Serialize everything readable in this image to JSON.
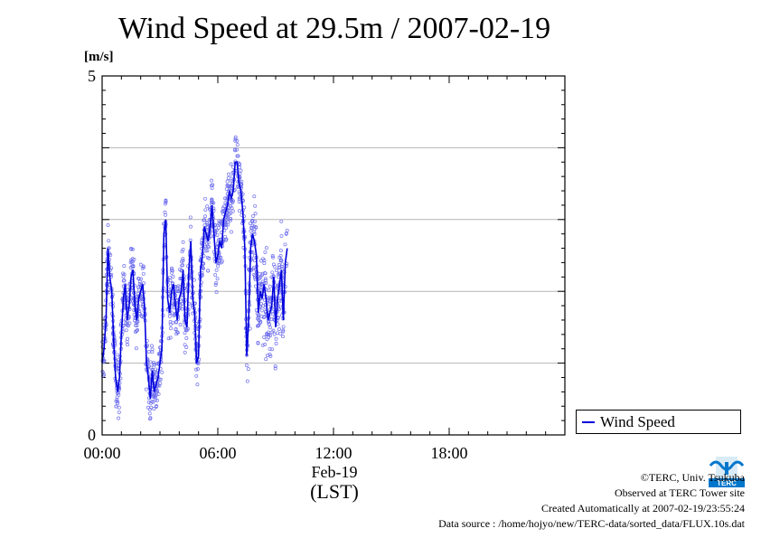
{
  "chart_data": {
    "type": "scatter",
    "title": "Wind Speed at 29.5m / 2007-02-19",
    "ylabel": "[m/s]",
    "xlabel": "(LST)",
    "date_label": "Feb-19",
    "ylim": [
      0,
      5
    ],
    "xlim": [
      0,
      24
    ],
    "y_ticks": [
      "0",
      "5"
    ],
    "x_ticks": [
      {
        "value": 0,
        "label": "00:00"
      },
      {
        "value": 6,
        "label": "06:00"
      },
      {
        "value": 12,
        "label": "12:00"
      },
      {
        "value": 18,
        "label": "18:00"
      }
    ],
    "grid": "horizontal",
    "legend_position": "right",
    "series": [
      {
        "name": "Wind Speed",
        "color": "#0000dd",
        "line_x": [
          0.0,
          0.1,
          0.2,
          0.3,
          0.4,
          0.5,
          0.6,
          0.7,
          0.8,
          0.9,
          1.0,
          1.1,
          1.2,
          1.3,
          1.4,
          1.5,
          1.6,
          1.7,
          1.8,
          1.9,
          2.0,
          2.1,
          2.2,
          2.3,
          2.4,
          2.5,
          2.6,
          2.7,
          2.8,
          2.9,
          3.0,
          3.1,
          3.2,
          3.3,
          3.4,
          3.5,
          3.6,
          3.7,
          3.8,
          3.9,
          4.0,
          4.1,
          4.2,
          4.3,
          4.4,
          4.5,
          4.6,
          4.7,
          4.8,
          4.9,
          5.0,
          5.1,
          5.2,
          5.3,
          5.4,
          5.5,
          5.6,
          5.7,
          5.8,
          5.9,
          6.0,
          6.1,
          6.2,
          6.3,
          6.4,
          6.5,
          6.6,
          6.7,
          6.8,
          6.9,
          7.0,
          7.1,
          7.2,
          7.3,
          7.4,
          7.5,
          7.6,
          7.7,
          7.8,
          7.9,
          8.0,
          8.1,
          8.2,
          8.3,
          8.4,
          8.5,
          8.6,
          8.7,
          8.8,
          8.9,
          9.0,
          9.1,
          9.2,
          9.3,
          9.4,
          9.5,
          9.6
        ],
        "line_y": [
          1.0,
          1.2,
          1.6,
          2.6,
          2.2,
          2.0,
          1.3,
          0.8,
          0.6,
          0.8,
          1.4,
          1.9,
          2.1,
          1.6,
          1.8,
          2.2,
          2.3,
          1.8,
          1.6,
          1.9,
          2.0,
          2.1,
          1.8,
          1.0,
          0.8,
          0.5,
          0.9,
          0.6,
          0.7,
          0.8,
          1.0,
          1.2,
          2.8,
          3.0,
          1.9,
          1.7,
          2.0,
          2.1,
          1.8,
          1.6,
          1.9,
          2.0,
          2.3,
          1.6,
          1.5,
          2.3,
          2.7,
          1.9,
          1.7,
          1.0,
          1.1,
          2.3,
          2.5,
          2.9,
          2.8,
          2.7,
          2.9,
          3.2,
          2.8,
          2.4,
          2.5,
          2.7,
          2.6,
          3.0,
          3.1,
          3.2,
          3.4,
          3.3,
          3.4,
          3.8,
          3.8,
          3.5,
          3.4,
          3.1,
          2.6,
          1.1,
          1.6,
          2.6,
          2.8,
          2.7,
          2.5,
          1.7,
          2.0,
          1.9,
          2.1,
          1.9,
          1.6,
          1.7,
          1.8,
          2.2,
          1.5,
          1.9,
          2.1,
          2.3,
          1.6,
          2.4,
          2.6
        ]
      }
    ]
  },
  "credits": {
    "copyright": "©TERC, Univ. Tsukuba",
    "observed": "Observed at TERC Tower site",
    "created": "Created Automatically at 2007-02-19/23:55:24",
    "source": "Data source : /home/hojyo/new/TERC-data/sorted_data/FLUX.10s.dat"
  },
  "logo": {
    "text": "TERC",
    "color": "#0077cc"
  }
}
